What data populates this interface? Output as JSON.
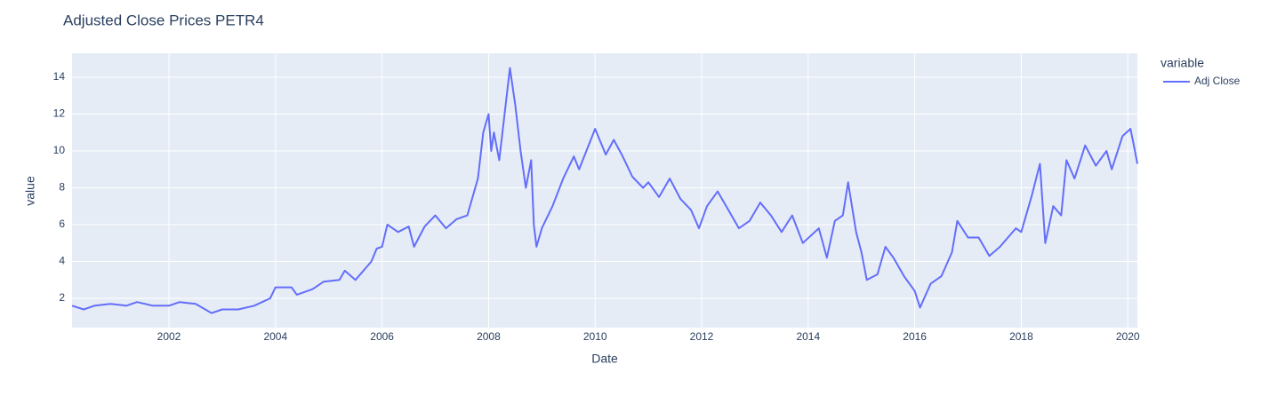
{
  "chart_data": {
    "type": "line",
    "title": "Adjusted Close Prices PETR4",
    "x_label": "Date",
    "y_label": "value",
    "legend_title": "variable",
    "grid": true,
    "x": [
      2000.18,
      2000.4,
      2000.6,
      2000.9,
      2001.2,
      2001.4,
      2001.7,
      2002.0,
      2002.2,
      2002.5,
      2002.8,
      2003.0,
      2003.3,
      2003.6,
      2003.9,
      2004.0,
      2004.3,
      2004.4,
      2004.7,
      2004.9,
      2005.2,
      2005.3,
      2005.5,
      2005.8,
      2005.9,
      2006.0,
      2006.1,
      2006.3,
      2006.5,
      2006.6,
      2006.8,
      2007.0,
      2007.2,
      2007.4,
      2007.6,
      2007.8,
      2007.9,
      2008.0,
      2008.05,
      2008.1,
      2008.2,
      2008.3,
      2008.4,
      2008.5,
      2008.6,
      2008.7,
      2008.8,
      2008.85,
      2008.9,
      2009.0,
      2009.2,
      2009.4,
      2009.6,
      2009.7,
      2010.0,
      2010.2,
      2010.35,
      2010.5,
      2010.7,
      2010.9,
      2011.0,
      2011.2,
      2011.4,
      2011.6,
      2011.8,
      2011.95,
      2012.1,
      2012.3,
      2012.5,
      2012.7,
      2012.9,
      2013.1,
      2013.3,
      2013.5,
      2013.7,
      2013.9,
      2014.2,
      2014.35,
      2014.5,
      2014.65,
      2014.75,
      2014.9,
      2015.0,
      2015.1,
      2015.3,
      2015.45,
      2015.6,
      2015.8,
      2016.0,
      2016.1,
      2016.3,
      2016.5,
      2016.7,
      2016.8,
      2017.0,
      2017.2,
      2017.4,
      2017.6,
      2017.9,
      2018.0,
      2018.2,
      2018.35,
      2018.45,
      2018.6,
      2018.75,
      2018.85,
      2019.0,
      2019.2,
      2019.4,
      2019.6,
      2019.7,
      2019.9,
      2020.05,
      2020.1,
      2020.18
    ],
    "series": [
      {
        "name": "Adj Close",
        "color": "#636efa",
        "values": [
          1.6,
          1.4,
          1.6,
          1.7,
          1.6,
          1.8,
          1.6,
          1.6,
          1.8,
          1.7,
          1.2,
          1.4,
          1.4,
          1.6,
          2.0,
          2.6,
          2.6,
          2.2,
          2.5,
          2.9,
          3.0,
          3.5,
          3.0,
          4.0,
          4.7,
          4.8,
          6.0,
          5.6,
          5.9,
          4.8,
          5.9,
          6.5,
          5.8,
          6.3,
          6.5,
          8.5,
          11,
          12,
          10,
          11,
          9.5,
          12,
          14.5,
          12.5,
          10,
          8,
          9.5,
          6,
          4.8,
          5.8,
          7,
          8.5,
          9.7,
          9,
          11.2,
          9.8,
          10.6,
          9.8,
          8.6,
          8,
          8.3,
          7.5,
          8.5,
          7.4,
          6.8,
          5.8,
          7.0,
          7.8,
          6.8,
          5.8,
          6.2,
          7.2,
          6.5,
          5.6,
          6.5,
          5.0,
          5.8,
          4.2,
          6.2,
          6.5,
          8.3,
          5.6,
          4.5,
          3.0,
          3.3,
          4.8,
          4.2,
          3.2,
          2.4,
          1.5,
          2.8,
          3.2,
          4.5,
          6.2,
          5.3,
          5.3,
          4.3,
          4.8,
          5.8,
          5.6,
          7.6,
          9.3,
          5.0,
          7.0,
          6.5,
          9.5,
          8.5,
          10.3,
          9.2,
          10.0,
          9.0,
          10.8,
          11.2,
          10.5,
          9.3
        ]
      }
    ],
    "xlim": [
      2000.18,
      2020.18
    ],
    "xticks": [
      2002,
      2004,
      2006,
      2008,
      2010,
      2012,
      2014,
      2016,
      2018,
      2020
    ],
    "ylim": [
      0.41,
      15.3
    ],
    "yticks": [
      2,
      4,
      6,
      8,
      10,
      12,
      14
    ]
  }
}
